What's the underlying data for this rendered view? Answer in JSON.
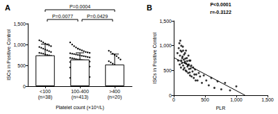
{
  "chart_data": [
    {
      "type": "bar",
      "title": "A",
      "categories": [
        "<100\n(n=38)",
        "100-400\n(n=413)",
        ">400\n(n=20)"
      ],
      "values": [
        740,
        640,
        520
      ],
      "errors": [
        270,
        160,
        250
      ],
      "points": [
        [
          1100,
          1080,
          1050,
          1020,
          1000,
          980,
          960,
          940,
          920,
          900,
          880,
          860,
          840,
          820,
          800,
          790,
          780,
          760,
          750,
          740,
          730,
          720,
          700,
          690,
          670,
          650,
          630,
          610,
          590,
          560,
          540,
          510,
          480,
          450,
          420,
          380,
          330,
          260
        ],
        [
          1050,
          1000,
          960,
          930,
          900,
          880,
          860,
          840,
          820,
          810,
          800,
          790,
          780,
          770,
          760,
          750,
          740,
          730,
          720,
          710,
          700,
          690,
          680,
          670,
          660,
          650,
          640,
          640,
          630,
          620,
          610,
          600,
          590,
          580,
          570,
          560,
          550,
          540,
          530,
          520,
          510,
          500,
          490,
          470,
          450,
          430,
          410,
          390,
          370,
          350,
          320,
          300,
          280,
          250,
          220,
          200,
          180,
          150,
          120,
          900
        ],
        [
          850,
          820,
          780,
          750,
          720,
          680,
          640,
          600,
          570,
          540,
          510,
          480,
          450,
          400,
          360,
          320,
          280,
          240,
          200,
          160
        ]
      ],
      "color": "#ffffff",
      "x_label": "Platelet count (×10⁹/L)",
      "y_label": "ISCs in Positive Control",
      "ylim": [
        0,
        1500
      ],
      "yticks": [
        0,
        500,
        1000,
        1500
      ],
      "annotations": [
        {
          "from": 0,
          "to": 2,
          "text": "P=0.0004"
        },
        {
          "from": 0,
          "to": 1,
          "text": "P=0.0077"
        },
        {
          "from": 1,
          "to": 2,
          "text": "P=0.0429"
        }
      ]
    },
    {
      "type": "scatter",
      "title": "B",
      "x": [
        60,
        80,
        90,
        100,
        110,
        120,
        120,
        130,
        140,
        150,
        150,
        160,
        170,
        180,
        180,
        190,
        200,
        210,
        220,
        230,
        240,
        250,
        260,
        270,
        280,
        300,
        320,
        340,
        360,
        380,
        400,
        420,
        450,
        480,
        520,
        560,
        600,
        650,
        700,
        760,
        820,
        900,
        1000,
        70,
        95,
        105,
        115,
        125,
        135,
        145,
        155,
        165,
        175,
        185,
        195,
        205,
        215,
        225,
        235,
        245,
        255,
        265,
        285,
        310,
        330,
        350
      ],
      "values": [
        850,
        950,
        1050,
        800,
        900,
        700,
        1000,
        650,
        780,
        600,
        900,
        720,
        550,
        680,
        850,
        500,
        640,
        750,
        580,
        450,
        620,
        700,
        400,
        540,
        600,
        480,
        350,
        520,
        420,
        300,
        450,
        380,
        250,
        400,
        300,
        200,
        350,
        150,
        280,
        120,
        250,
        100,
        180,
        700,
        620,
        1100,
        560,
        880,
        750,
        980,
        520,
        820,
        660,
        740,
        900,
        480,
        690,
        610,
        800,
        530,
        460,
        700,
        380,
        560,
        420,
        300
      ],
      "color": "#000000",
      "x_label": "PLR",
      "y_label": "ISCs in Positive Control",
      "xlim": [
        0,
        1500
      ],
      "xticks": [
        0,
        500,
        1000,
        1500
      ],
      "ylim": [
        0,
        1500
      ],
      "yticks": [
        0,
        500,
        1000,
        1500
      ],
      "annotations": [
        "P<0.0001",
        "r=-0.3122"
      ],
      "trend_line": {
        "x": [
          0,
          1140
        ],
        "y": [
          760,
          0
        ]
      }
    }
  ]
}
